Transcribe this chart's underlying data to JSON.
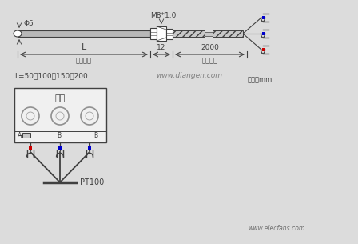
{
  "bg_color": "#dcdcdc",
  "phi_label": "Φ5",
  "m8_label": "M8*1.0",
  "L_label": "L",
  "dim_12": "12",
  "dim_2000": "2000",
  "probe_label": "探头长度",
  "lead_label": "引线长度",
  "L_values": "L=50、100、150、200",
  "unit_label": "单位：mm",
  "meter_label": "仪表",
  "pt100_label": "PT100",
  "website1": "www.diangen.com",
  "unit_suffix": "单位：mm",
  "website2": "www.elecfans.com",
  "blue_color": "#0000cc",
  "red_color": "#cc0000",
  "line_color": "#404040",
  "sensor_gray": "#b8b8b8",
  "cable_gray": "#c8c8c8",
  "white_col": "#ffffff",
  "box_fill": "#f0f0f0"
}
